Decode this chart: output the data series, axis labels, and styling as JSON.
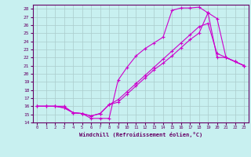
{
  "xlabel": "Windchill (Refroidissement éolien,°C)",
  "ylabel": "",
  "xlim": [
    -0.5,
    23.5
  ],
  "ylim": [
    14,
    28.5
  ],
  "xticks": [
    0,
    1,
    2,
    3,
    4,
    5,
    6,
    7,
    8,
    9,
    10,
    11,
    12,
    13,
    14,
    15,
    16,
    17,
    18,
    19,
    20,
    21,
    22,
    23
  ],
  "yticks": [
    14,
    15,
    16,
    17,
    18,
    19,
    20,
    21,
    22,
    23,
    24,
    25,
    26,
    27,
    28
  ],
  "bg_color": "#c8f0f0",
  "line_color": "#cc00cc",
  "grid_color": "#aacccc",
  "curve1_x": [
    0,
    1,
    2,
    3,
    4,
    5,
    6,
    7,
    8,
    9,
    10,
    11,
    12,
    13,
    14,
    15,
    16,
    17,
    18,
    19,
    20,
    21,
    22,
    23
  ],
  "curve1_y": [
    16.0,
    16.0,
    16.0,
    16.0,
    15.2,
    15.1,
    14.5,
    14.5,
    14.5,
    19.2,
    20.8,
    22.2,
    23.1,
    23.8,
    24.5,
    27.8,
    28.1,
    28.1,
    28.2,
    27.5,
    22.0,
    22.0,
    21.5,
    21.0
  ],
  "curve2_x": [
    0,
    1,
    2,
    3,
    4,
    5,
    6,
    7,
    8,
    9,
    10,
    11,
    12,
    13,
    14,
    15,
    16,
    17,
    18,
    19,
    20,
    21,
    22,
    23
  ],
  "curve2_y": [
    16.0,
    16.0,
    16.0,
    15.8,
    15.2,
    15.1,
    14.8,
    15.1,
    16.2,
    16.5,
    17.5,
    18.5,
    19.5,
    20.5,
    21.3,
    22.2,
    23.2,
    24.2,
    25.0,
    27.5,
    26.8,
    22.0,
    21.5,
    21.0
  ],
  "curve3_x": [
    0,
    1,
    2,
    3,
    4,
    5,
    6,
    7,
    8,
    9,
    10,
    11,
    12,
    13,
    14,
    15,
    16,
    17,
    18,
    19,
    20,
    21,
    22,
    23
  ],
  "curve3_y": [
    16.0,
    16.0,
    16.0,
    15.8,
    15.2,
    15.1,
    14.8,
    15.1,
    16.2,
    16.8,
    17.8,
    18.8,
    19.8,
    20.8,
    21.8,
    22.8,
    23.8,
    24.8,
    25.8,
    26.2,
    22.5,
    22.0,
    21.5,
    21.0
  ]
}
